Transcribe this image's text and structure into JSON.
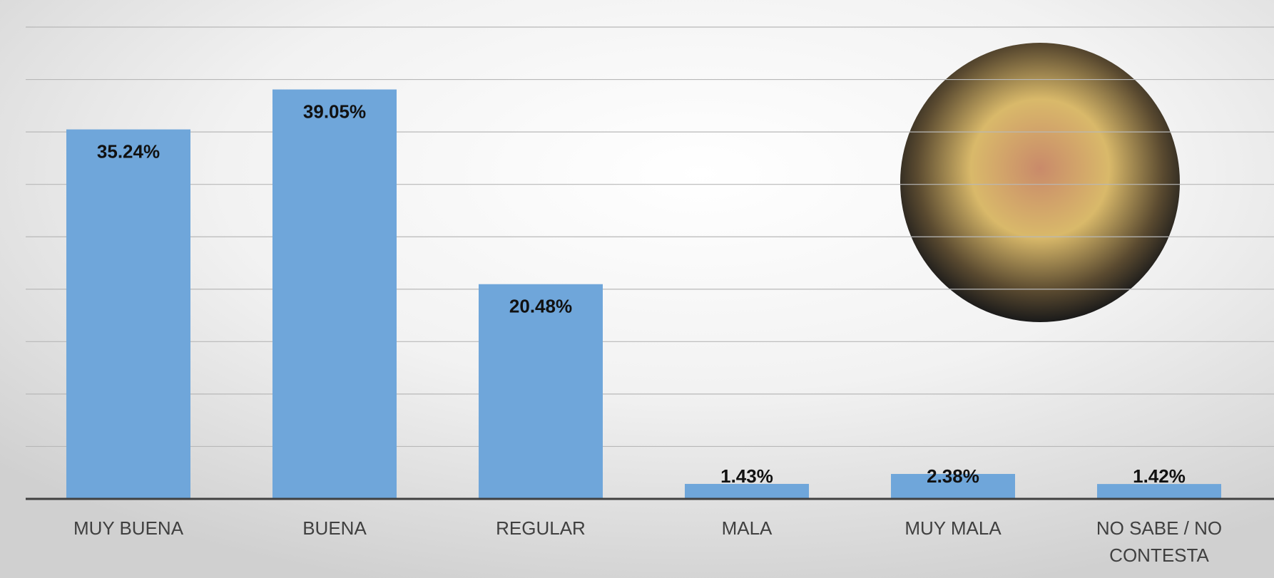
{
  "chart_data": {
    "type": "bar",
    "categories": [
      "MUY BUENA",
      "BUENA",
      "REGULAR",
      "MALA",
      "MUY MALA",
      "NO SABE / NO CONTESTA"
    ],
    "values": [
      35.24,
      39.05,
      20.48,
      1.43,
      2.38,
      1.42
    ],
    "value_labels": [
      "35.24%",
      "39.05%",
      "20.48%",
      "1.43%",
      "2.38%",
      "1.42%"
    ],
    "color": "#6fa6da",
    "ylim": [
      0,
      45
    ],
    "yticks": [
      5,
      10,
      15,
      20,
      25,
      30,
      35,
      40,
      45
    ],
    "grid": true
  }
}
